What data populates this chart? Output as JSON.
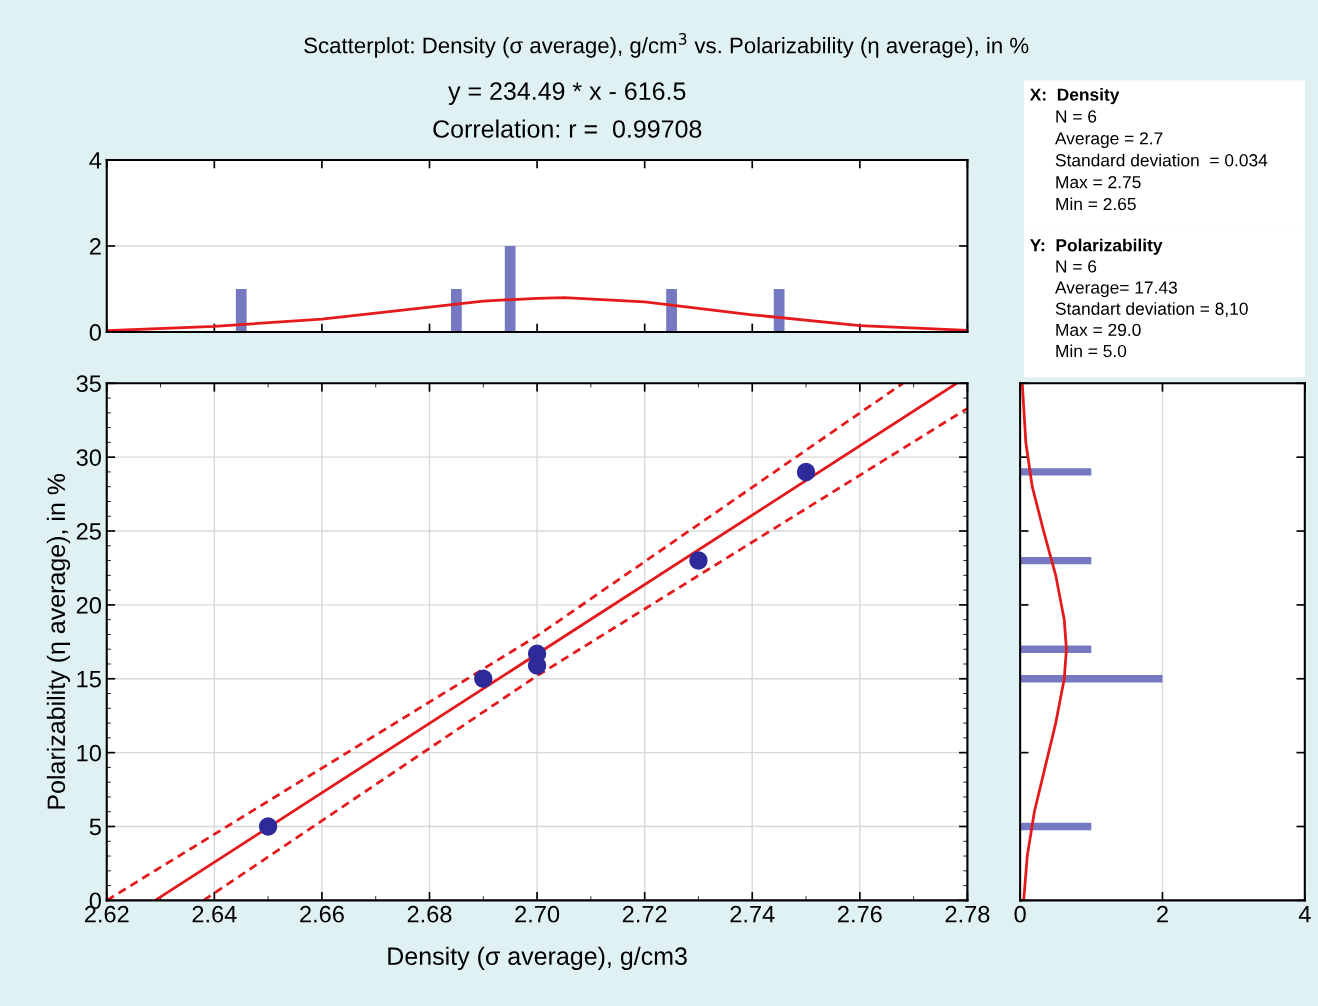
{
  "chart_data": [
    {
      "type": "bar",
      "title": "Scatterplot: Density (σ average), g/cm$^{3}$ vs. Polarizability (η average), in %",
      "subtitle": "y = 234.49 * x - 616.5",
      "annotations": [
        "Correlation: r =  0.99708"
      ],
      "x": [
        2.645,
        2.685,
        2.695,
        2.725,
        2.745
      ],
      "values": [
        1,
        1,
        2,
        1,
        1
      ],
      "color": "#7479c2",
      "series": [
        {
          "type": "line",
          "color": "#e41a1c",
          "x": [
            2.62,
            2.64,
            2.66,
            2.68,
            2.69,
            2.7,
            2.705,
            2.72,
            2.73,
            2.74,
            2.76,
            2.78
          ],
          "values": [
            0.03,
            0.13,
            0.3,
            0.58,
            0.72,
            0.78,
            0.8,
            0.7,
            0.55,
            0.4,
            0.15,
            0.04
          ]
        }
      ],
      "xlim": [
        2.62,
        2.78
      ],
      "xticks": [
        2.62,
        2.64,
        2.66,
        2.68,
        2.7,
        2.72,
        2.74,
        2.76,
        2.78
      ],
      "ylim": [
        0,
        4
      ],
      "yticks": [
        0,
        2,
        4
      ],
      "grid": "y",
      "tick_labels": "y"
    },
    {
      "type": "scatter",
      "xlabel": "Density (σ average), g/cm3",
      "ylabel": "Polarizability (η average), in %",
      "series": [
        {
          "type": "scatter",
          "color": "#2e2a9a",
          "marker": "circle",
          "x": [
            2.65,
            2.69,
            2.7,
            2.7,
            2.73,
            2.75
          ],
          "values": [
            5,
            15,
            16.7,
            15.9,
            23,
            29
          ]
        },
        {
          "type": "line",
          "color": "#e41a1c",
          "line_style": "solid",
          "x": [
            2.629,
            2.778
          ],
          "values": [
            0,
            35
          ]
        },
        {
          "type": "line",
          "color": "#e41a1c",
          "line_style": "dashed",
          "x": [
            2.62,
            2.7,
            2.768
          ],
          "values": [
            0,
            17.9,
            35
          ]
        },
        {
          "type": "line",
          "color": "#e41a1c",
          "line_style": "dashed",
          "x": [
            2.638,
            2.7,
            2.78
          ],
          "values": [
            0,
            15.2,
            33.3
          ]
        }
      ],
      "xlim": [
        2.62,
        2.78
      ],
      "xticks": [
        {
          "value": 2.62,
          "label": "2.62"
        },
        {
          "value": 2.64,
          "label": "2.64"
        },
        {
          "value": 2.66,
          "label": "2.66"
        },
        {
          "value": 2.68,
          "label": "2.68"
        },
        {
          "value": 2.7,
          "label": "2.70"
        },
        {
          "value": 2.72,
          "label": "2.72"
        },
        {
          "value": 2.74,
          "label": "2.74"
        },
        {
          "value": 2.76,
          "label": "2.76"
        },
        {
          "value": 2.78,
          "label": "2.78"
        }
      ],
      "ylim": [
        0,
        35
      ],
      "yticks": [
        0,
        5,
        10,
        15,
        20,
        25,
        30,
        35
      ],
      "grid": true
    },
    {
      "type": "bar",
      "orientation": "horizontal",
      "x": [
        5,
        15,
        17,
        23,
        29
      ],
      "values": [
        1,
        2,
        1,
        1,
        1
      ],
      "color": "#7479c2",
      "series": [
        {
          "type": "line",
          "color": "#e41a1c",
          "x": [
            0,
            3,
            6,
            9,
            12,
            15,
            17,
            19,
            22,
            25,
            28,
            31,
            35
          ],
          "values": [
            0.05,
            0.1,
            0.2,
            0.35,
            0.5,
            0.62,
            0.65,
            0.62,
            0.5,
            0.33,
            0.17,
            0.08,
            0.03
          ]
        }
      ],
      "xlim": [
        0,
        4
      ],
      "xticks": [
        0,
        2,
        4
      ],
      "ylim": [
        0,
        35
      ],
      "yticks": [
        0,
        5,
        10,
        15,
        20,
        25,
        30,
        35
      ],
      "grid": "x",
      "tick_labels": "x"
    },
    {
      "type": "other",
      "title": "X:  Density",
      "annotations": [
        "N = 6",
        "Average = 2.7",
        "Standard deviation  = 0.034",
        "Max = 2.75",
        "Min = 2.65"
      ]
    },
    {
      "type": "other",
      "title": "Y:  Polarizability",
      "annotations": [
        "N = 6",
        "Average= 17.43",
        "Standart deviation = 8,10",
        "Max = 29.0",
        "Min = 5.0"
      ]
    }
  ]
}
